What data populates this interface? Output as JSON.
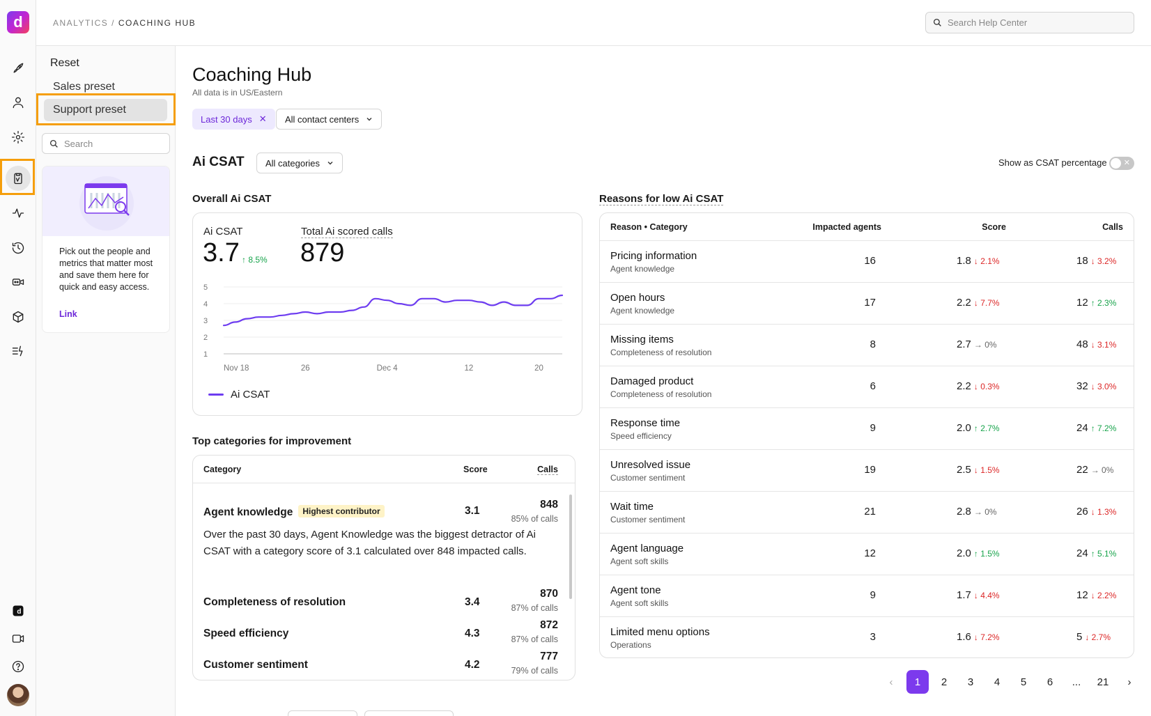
{
  "app": {
    "logo_letter": "d",
    "brand_color": "#7c3aed"
  },
  "breadcrumb": {
    "parent": "ANALYTICS",
    "separator": "/",
    "current": "COACHING HUB"
  },
  "help_search": {
    "placeholder": "Search Help Center"
  },
  "rail": {
    "items": [
      "rocket-icon",
      "user-icon",
      "gear-icon",
      "clipboard-icon",
      "activity-icon",
      "history-icon",
      "video-bot-icon",
      "cube-icon",
      "tasks-icon"
    ],
    "bottom": [
      "dialpad-icon",
      "video-icon",
      "help-icon",
      "avatar"
    ]
  },
  "panel": {
    "reset": "Reset",
    "presets": [
      "Sales preset",
      "Support preset"
    ],
    "search_placeholder": "Search",
    "promo_text": "Pick out the people and metrics that matter most and save them here for quick and easy access.",
    "promo_link": "Link"
  },
  "page": {
    "title": "Coaching Hub",
    "subtitle": "All data is in US/Eastern",
    "date_filter": "Last 30 days",
    "cc_filter": "All contact centers"
  },
  "ai_csat": {
    "section_title": "Ai CSAT",
    "category_dropdown": "All categories",
    "toggle_label": "Show as CSAT percentage",
    "overall_title": "Overall Ai CSAT",
    "kpi_csat_label": "Ai CSAT",
    "kpi_csat_value": "3.7",
    "kpi_csat_delta": "↑ 8.5%",
    "kpi_calls_label": "Total Ai scored calls",
    "kpi_calls_value": "879",
    "legend": "Ai CSAT"
  },
  "chart_data": {
    "type": "line",
    "ylim": [
      1,
      5
    ],
    "yticks": [
      "1",
      "2",
      "3",
      "4",
      "5"
    ],
    "xticks": [
      "Nov 18",
      "26",
      "Dec 4",
      "12",
      "20"
    ],
    "series": [
      {
        "name": "Ai CSAT",
        "color": "#6d3cf0",
        "values": [
          2.7,
          2.9,
          3.1,
          3.2,
          3.2,
          3.3,
          3.4,
          3.5,
          3.4,
          3.5,
          3.5,
          3.6,
          3.8,
          4.3,
          4.2,
          4.0,
          3.9,
          4.3,
          4.3,
          4.1,
          4.2,
          4.2,
          4.1,
          3.9,
          4.1,
          3.9,
          3.9,
          4.3,
          4.3,
          4.5
        ]
      }
    ]
  },
  "top_categories": {
    "title": "Top categories for improvement",
    "headers": {
      "category": "Category",
      "score": "Score",
      "calls": "Calls"
    },
    "badge": "Highest contributor",
    "description": "Over the past 30 days, Agent Knowledge was the biggest detractor of Ai CSAT with a category score of 3.1 calculated over 848 impacted calls.",
    "rows": [
      {
        "name": "Agent knowledge",
        "score": "3.1",
        "calls": "848",
        "pct": "85% of calls"
      },
      {
        "name": "Completeness of resolution",
        "score": "3.4",
        "calls": "870",
        "pct": "87% of calls"
      },
      {
        "name": "Speed efficiency",
        "score": "4.3",
        "calls": "872",
        "pct": "87% of calls"
      },
      {
        "name": "Customer sentiment",
        "score": "4.2",
        "calls": "777",
        "pct": "79% of calls"
      }
    ]
  },
  "reasons": {
    "title": "Reasons for low Ai CSAT",
    "headers": {
      "reason": "Reason • Category",
      "agents": "Impacted agents",
      "score": "Score",
      "calls": "Calls"
    },
    "rows": [
      {
        "reason": "Pricing information",
        "category": "Agent knowledge",
        "agents": "16",
        "score": "1.8",
        "score_delta": "↓ 2.1%",
        "score_dir": "down",
        "calls": "18",
        "calls_delta": "↓ 3.2%",
        "calls_dir": "down"
      },
      {
        "reason": "Open hours",
        "category": "Agent knowledge",
        "agents": "17",
        "score": "2.2",
        "score_delta": "↓ 7.7%",
        "score_dir": "down",
        "calls": "12",
        "calls_delta": "↑ 2.3%",
        "calls_dir": "up"
      },
      {
        "reason": "Missing items",
        "category": "Completeness of resolution",
        "agents": "8",
        "score": "2.7",
        "score_delta": "→ 0%",
        "score_dir": "flat",
        "calls": "48",
        "calls_delta": "↓ 3.1%",
        "calls_dir": "down"
      },
      {
        "reason": "Damaged product",
        "category": "Completeness of resolution",
        "agents": "6",
        "score": "2.2",
        "score_delta": "↓ 0.3%",
        "score_dir": "down",
        "calls": "32",
        "calls_delta": "↓ 3.0%",
        "calls_dir": "down"
      },
      {
        "reason": "Response time",
        "category": "Speed efficiency",
        "agents": "9",
        "score": "2.0",
        "score_delta": "↑ 2.7%",
        "score_dir": "up",
        "calls": "24",
        "calls_delta": "↑ 7.2%",
        "calls_dir": "up"
      },
      {
        "reason": "Unresolved issue",
        "category": "Customer sentiment",
        "agents": "19",
        "score": "2.5",
        "score_delta": "↓ 1.5%",
        "score_dir": "down",
        "calls": "22",
        "calls_delta": "→ 0%",
        "calls_dir": "flat"
      },
      {
        "reason": "Wait time",
        "category": "Customer sentiment",
        "agents": "21",
        "score": "2.8",
        "score_delta": "→ 0%",
        "score_dir": "flat",
        "calls": "26",
        "calls_delta": "↓ 1.3%",
        "calls_dir": "down"
      },
      {
        "reason": "Agent language",
        "category": "Agent soft skills",
        "agents": "12",
        "score": "2.0",
        "score_delta": "↑ 1.5%",
        "score_dir": "up",
        "calls": "24",
        "calls_delta": "↑ 5.1%",
        "calls_dir": "up"
      },
      {
        "reason": "Agent tone",
        "category": "Agent soft skills",
        "agents": "9",
        "score": "1.7",
        "score_delta": "↓ 4.4%",
        "score_dir": "down",
        "calls": "12",
        "calls_delta": "↓ 2.2%",
        "calls_dir": "down"
      },
      {
        "reason": "Limited menu options",
        "category": "Operations",
        "agents": "3",
        "score": "1.6",
        "score_delta": "↓ 7.2%",
        "score_dir": "down",
        "calls": "5",
        "calls_delta": "↓ 2.7%",
        "calls_dir": "down"
      }
    ]
  },
  "pagination": {
    "prev": "‹",
    "pages": [
      "1",
      "2",
      "3",
      "4",
      "5",
      "6"
    ],
    "ellipsis": "...",
    "last": "21",
    "next": "›",
    "current": "1"
  }
}
